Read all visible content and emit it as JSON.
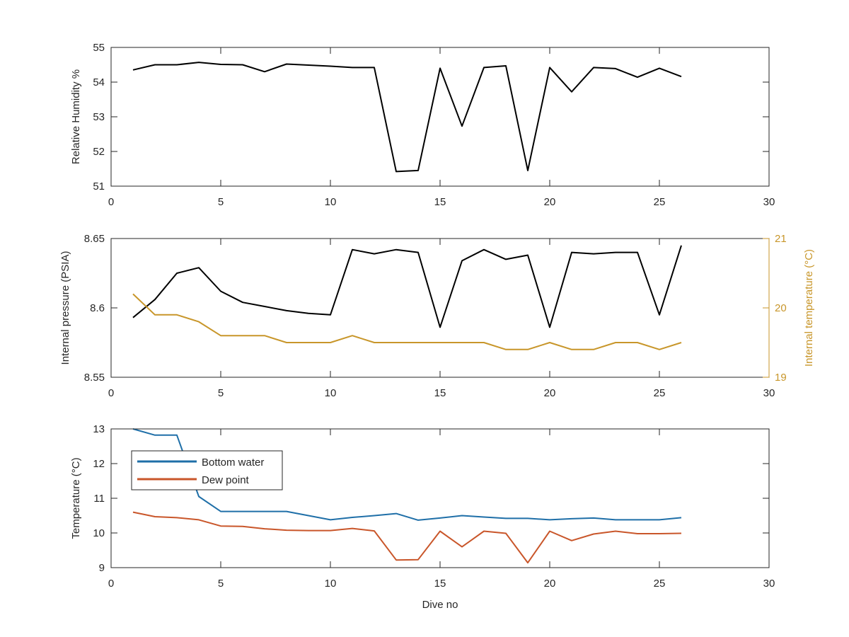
{
  "chart_data": [
    {
      "type": "line",
      "ylabel": "Relative Humidity %",
      "xlabel": "",
      "xlim": [
        0,
        30
      ],
      "ylim": [
        51,
        55
      ],
      "x_ticks": [
        "0",
        "5",
        "10",
        "15",
        "20",
        "25",
        "30"
      ],
      "y_ticks": [
        "51",
        "52",
        "53",
        "54",
        "55"
      ],
      "x": [
        1,
        2,
        3,
        4,
        5,
        6,
        7,
        8,
        9,
        10,
        11,
        12,
        13,
        14,
        15,
        16,
        17,
        18,
        19,
        20,
        21,
        22,
        23,
        24,
        25,
        26
      ],
      "series": [
        {
          "color": "#000000",
          "values": [
            54.35,
            54.5,
            54.5,
            54.57,
            54.51,
            54.5,
            54.3,
            54.52,
            54.49,
            54.46,
            54.42,
            54.42,
            51.42,
            51.45,
            54.4,
            52.73,
            54.42,
            54.47,
            51.45,
            54.42,
            53.72,
            54.42,
            54.39,
            54.14,
            54.4,
            54.16
          ]
        }
      ]
    },
    {
      "type": "line",
      "ylabel": "Internal pressure (PSIA)",
      "ylabel_right": "Internal temperature (°C)",
      "xlabel": "",
      "xlim": [
        0,
        30
      ],
      "ylim": [
        8.55,
        8.65
      ],
      "ylim_right": [
        19,
        21
      ],
      "x_ticks": [
        "0",
        "5",
        "10",
        "15",
        "20",
        "25",
        "30"
      ],
      "y_ticks": [
        "8.55",
        "8.6",
        "8.65"
      ],
      "y_ticks_right": [
        "19",
        "20",
        "21"
      ],
      "x": [
        1,
        2,
        3,
        4,
        5,
        6,
        7,
        8,
        9,
        10,
        11,
        12,
        13,
        14,
        15,
        16,
        17,
        18,
        19,
        20,
        21,
        22,
        23,
        24,
        25,
        26
      ],
      "series": [
        {
          "axis": "left",
          "color": "#000000",
          "values": [
            8.593,
            8.606,
            8.625,
            8.629,
            8.612,
            8.604,
            8.601,
            8.598,
            8.596,
            8.595,
            8.642,
            8.639,
            8.642,
            8.64,
            8.586,
            8.634,
            8.642,
            8.635,
            8.638,
            8.586,
            8.64,
            8.639,
            8.64,
            8.64,
            8.595,
            8.645
          ]
        },
        {
          "axis": "right",
          "color": "#C8962A",
          "values": [
            20.2,
            19.9,
            19.9,
            19.8,
            19.6,
            19.6,
            19.6,
            19.5,
            19.5,
            19.5,
            19.6,
            19.5,
            19.5,
            19.5,
            19.5,
            19.5,
            19.5,
            19.4,
            19.4,
            19.5,
            19.4,
            19.4,
            19.5,
            19.5,
            19.4,
            19.5
          ]
        }
      ]
    },
    {
      "type": "line",
      "ylabel": "Temperature (°C)",
      "xlabel": "Dive no",
      "xlim": [
        0,
        30
      ],
      "ylim": [
        9,
        13
      ],
      "x_ticks": [
        "0",
        "5",
        "10",
        "15",
        "20",
        "25",
        "30"
      ],
      "y_ticks": [
        "9",
        "10",
        "11",
        "12",
        "13"
      ],
      "legend": "top-left",
      "x": [
        1,
        2,
        3,
        4,
        5,
        6,
        7,
        8,
        9,
        10,
        11,
        12,
        13,
        14,
        15,
        16,
        17,
        18,
        19,
        20,
        21,
        22,
        23,
        24,
        25,
        26
      ],
      "series": [
        {
          "name": "Bottom water",
          "color": "#1F6FA8",
          "values": [
            13.0,
            12.82,
            12.82,
            11.05,
            10.62,
            10.62,
            10.62,
            10.62,
            10.5,
            10.38,
            10.45,
            10.5,
            10.56,
            10.37,
            10.43,
            10.5,
            10.46,
            10.42,
            10.42,
            10.38,
            10.41,
            10.43,
            10.38,
            10.38,
            10.38,
            10.44
          ]
        },
        {
          "name": "Dew point",
          "color": "#C9562A",
          "values": [
            10.6,
            10.47,
            10.44,
            10.38,
            10.2,
            10.19,
            10.12,
            10.08,
            10.07,
            10.07,
            10.13,
            10.06,
            9.22,
            9.23,
            10.05,
            9.6,
            10.05,
            9.99,
            9.14,
            10.05,
            9.78,
            9.97,
            10.05,
            9.98,
            9.98,
            9.99
          ]
        }
      ]
    }
  ]
}
